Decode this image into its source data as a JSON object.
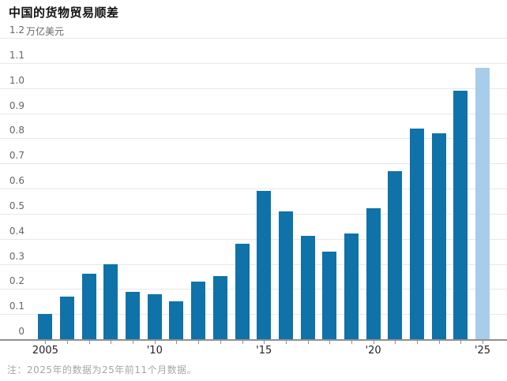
{
  "title": "中国的货物贸易顺差",
  "footnote": "注：2025年的数据为25年前11个月数据。",
  "chart_data": {
    "type": "bar",
    "title": "中国的货物贸易顺差",
    "unit_label": "万亿美元",
    "x": [
      2005,
      2006,
      2007,
      2008,
      2009,
      2010,
      2011,
      2012,
      2013,
      2014,
      2015,
      2016,
      2017,
      2018,
      2019,
      2020,
      2021,
      2022,
      2023,
      2024,
      2025
    ],
    "values": [
      0.1,
      0.17,
      0.26,
      0.3,
      0.19,
      0.18,
      0.15,
      0.23,
      0.25,
      0.38,
      0.59,
      0.51,
      0.41,
      0.35,
      0.42,
      0.52,
      0.67,
      0.84,
      0.82,
      0.99,
      1.08
    ],
    "series": [
      {
        "name": "货物贸易顺差",
        "values": [
          0.1,
          0.17,
          0.26,
          0.3,
          0.19,
          0.18,
          0.15,
          0.23,
          0.25,
          0.38,
          0.59,
          0.51,
          0.41,
          0.35,
          0.42,
          0.52,
          0.67,
          0.84,
          0.82,
          0.99,
          1.08
        ]
      }
    ],
    "ylim": [
      0,
      1.2
    ],
    "y_ticks": [
      0,
      0.1,
      0.2,
      0.3,
      0.4,
      0.5,
      0.6,
      0.7,
      0.8,
      0.9,
      1.0,
      1.1,
      1.2
    ],
    "y_tick_labels": [
      "0",
      "0.1",
      "0.2",
      "0.3",
      "0.4",
      "0.5",
      "0.6",
      "0.7",
      "0.8",
      "0.9",
      "1.0",
      "1.1",
      "1.2"
    ],
    "x_tick_labels": [
      {
        "year": 2005,
        "label": "2005"
      },
      {
        "year": 2010,
        "label": "'10"
      },
      {
        "year": 2015,
        "label": "'15"
      },
      {
        "year": 2020,
        "label": "'20"
      },
      {
        "year": 2025,
        "label": "'25"
      }
    ],
    "highlight_year": 2025,
    "grid": true,
    "legend": "none",
    "colors": {
      "bar": "#0f72a8",
      "bar_highlight": "#a8cdea",
      "gridline": "#e8e8e8",
      "axis": "#909090",
      "title_text": "#111111",
      "y_label_text": "#666666",
      "x_label_text": "#222222",
      "footnote_text": "#a6a6a6"
    }
  }
}
